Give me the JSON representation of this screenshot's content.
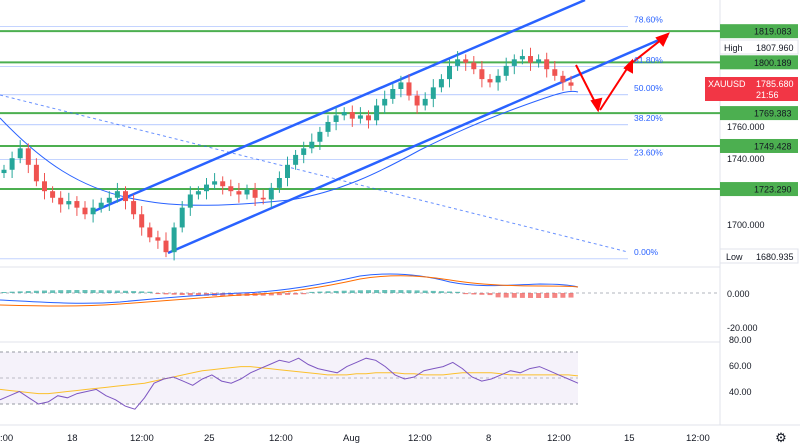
{
  "symbol": "XAUUSD",
  "price_badge": {
    "label": "XAUUSD",
    "price": "1785.680",
    "countdown": "21:56",
    "color": "#f23645"
  },
  "high_badge": {
    "label": "High",
    "value": "1807.960"
  },
  "low_badge": {
    "label": "Low",
    "value": "1680.935"
  },
  "colors": {
    "up": "#26a69a",
    "down": "#ef5350",
    "level": "#4caf50",
    "fib": "#2962ff",
    "channel": "#2962ff",
    "arrow": "#ff0000",
    "ma": "#2962ff",
    "macd": "#2962ff",
    "signal": "#ff6d00",
    "rsi": "#7e57c2",
    "rsi_ma": "#fbc02d"
  },
  "main_axis_ticks": [
    "1760.000",
    "1740.000",
    "1700.000"
  ],
  "macd_axis_ticks": [
    "0.000",
    "-20.000"
  ],
  "rsi_axis_ticks": [
    "80.00",
    "60.00",
    "40.00"
  ],
  "x_axis_labels": [
    ":00",
    "18",
    "12:00",
    "25",
    "12:00",
    "Aug",
    "12:00",
    "8",
    "12:00",
    "15",
    "12:00"
  ],
  "settings_icon": "gear-icon",
  "chart_data": {
    "type": "line",
    "instrument": "XAUUSD",
    "levels": [
      {
        "value": 1819.083,
        "label": "1819.083"
      },
      {
        "value": 1800.189,
        "label": "1800.189"
      },
      {
        "value": 1769.383,
        "label": "1769.383"
      },
      {
        "value": 1749.428,
        "label": "1749.428"
      },
      {
        "value": 1723.29,
        "label": "1723.290"
      }
    ],
    "fibonacci": [
      {
        "label": "78.60%",
        "value": 1822.0
      },
      {
        "label": "61.80%",
        "value": 1797.5
      },
      {
        "label": "50.00%",
        "value": 1780.5
      },
      {
        "label": "38.20%",
        "value": 1762.3
      },
      {
        "label": "23.60%",
        "value": 1741.3
      },
      {
        "label": "0.00%",
        "value": 1680.935
      }
    ],
    "candles_close": [
      1735,
      1742,
      1748,
      1738,
      1728,
      1722,
      1718,
      1714,
      1716,
      1712,
      1708,
      1712,
      1715,
      1718,
      1722,
      1716,
      1708,
      1700,
      1694,
      1692,
      1685,
      1700,
      1712,
      1720,
      1722,
      1726,
      1728,
      1725,
      1722,
      1720,
      1723,
      1718,
      1717,
      1724,
      1730,
      1738,
      1744,
      1748,
      1752,
      1758,
      1764,
      1768,
      1770,
      1766,
      1768,
      1765,
      1774,
      1778,
      1784,
      1788,
      1780,
      1774,
      1778,
      1785,
      1790,
      1798,
      1802,
      1800,
      1796,
      1790,
      1788,
      1792,
      1798,
      1802,
      1804,
      1800,
      1802,
      1796,
      1792,
      1788,
      1786
    ],
    "rsi": [
      34,
      38,
      42,
      36,
      30,
      32,
      38,
      36,
      40,
      42,
      44,
      38,
      34,
      28,
      25,
      36,
      50,
      54,
      56,
      52,
      48,
      54,
      58,
      52,
      50,
      54,
      60,
      64,
      68,
      72,
      70,
      74,
      68,
      64,
      62,
      60,
      66,
      70,
      74,
      72,
      66,
      58,
      54,
      56,
      62,
      64,
      66,
      70,
      64,
      56,
      52,
      54,
      58,
      62,
      60,
      64,
      66,
      62,
      58,
      54,
      50
    ],
    "rsi_ma": [
      44,
      43,
      42,
      41,
      40,
      40,
      41,
      42,
      43,
      44,
      45,
      46,
      47,
      48,
      49,
      50,
      52,
      54,
      56,
      58,
      60,
      62,
      63,
      64,
      65,
      66,
      66,
      65,
      64,
      63,
      62,
      61,
      60,
      59,
      58,
      58,
      58,
      59,
      59,
      60,
      60,
      60,
      59,
      59,
      58,
      58,
      58,
      59,
      60,
      60,
      60,
      60,
      59,
      58,
      58,
      58,
      58,
      58,
      58,
      58,
      57
    ],
    "ylim": [
      1676,
      1838
    ]
  }
}
